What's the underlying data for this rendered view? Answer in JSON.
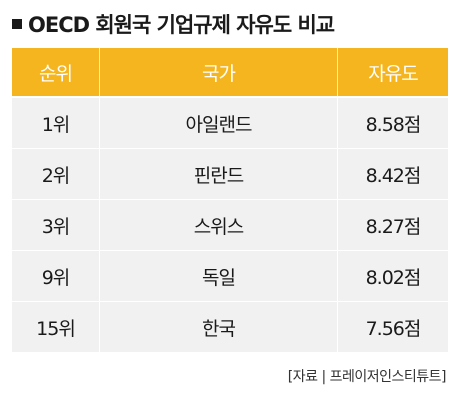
{
  "title": "OECD 회원국 기업규제 자유도 비교",
  "table": {
    "headers": [
      "순위",
      "국가",
      "자유도"
    ],
    "rows": [
      {
        "rank": "1위",
        "country": "아일랜드",
        "score": "8.58점"
      },
      {
        "rank": "2위",
        "country": "핀란드",
        "score": "8.42점"
      },
      {
        "rank": "3위",
        "country": "스위스",
        "score": "8.27점"
      },
      {
        "rank": "9위",
        "country": "독일",
        "score": "8.02점"
      },
      {
        "rank": "15위",
        "country": "한국",
        "score": "7.56점"
      }
    ]
  },
  "source": "[자료 | 프레이저인스티튜트]",
  "colors": {
    "header_bg": "#f5b51e",
    "row_bg": "#f1f1f1"
  }
}
